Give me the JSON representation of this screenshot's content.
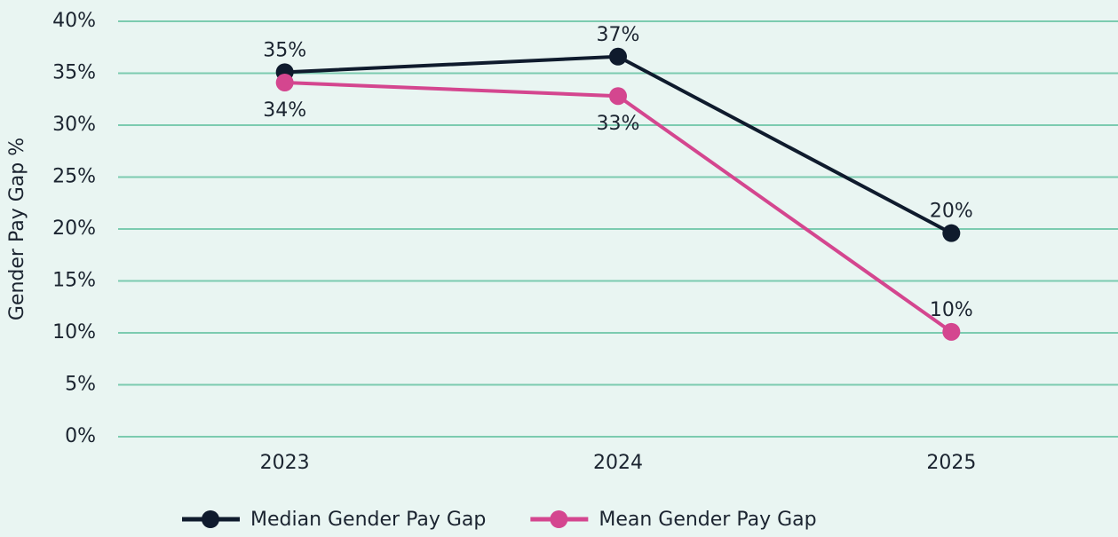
{
  "chart_data": {
    "type": "line",
    "y_label": "Gender Pay Gap %",
    "categories": [
      "2023",
      "2024",
      "2025"
    ],
    "series": [
      {
        "name": "Median Gender Pay Gap",
        "color": "#0f1b2d",
        "values": [
          35.1,
          36.6,
          19.6
        ],
        "value_labels": [
          "35%",
          "37%",
          "20%"
        ]
      },
      {
        "name": "Mean Gender Pay Gap",
        "color": "#d4468f",
        "values": [
          34.1,
          32.8,
          10.1
        ],
        "value_labels": [
          "34%",
          "33%",
          "10%"
        ]
      }
    ],
    "ylim": [
      0,
      40
    ],
    "yticks": [
      {
        "value": 0,
        "label": "0%"
      },
      {
        "value": 5,
        "label": "5%"
      },
      {
        "value": 10,
        "label": "10%"
      },
      {
        "value": 15,
        "label": "15%"
      },
      {
        "value": 20,
        "label": "20%"
      },
      {
        "value": 25,
        "label": "25%"
      },
      {
        "value": 30,
        "label": "30%"
      },
      {
        "value": 35,
        "label": "35%"
      },
      {
        "value": 40,
        "label": "40%"
      }
    ],
    "grid": true,
    "legend": "bottom"
  }
}
